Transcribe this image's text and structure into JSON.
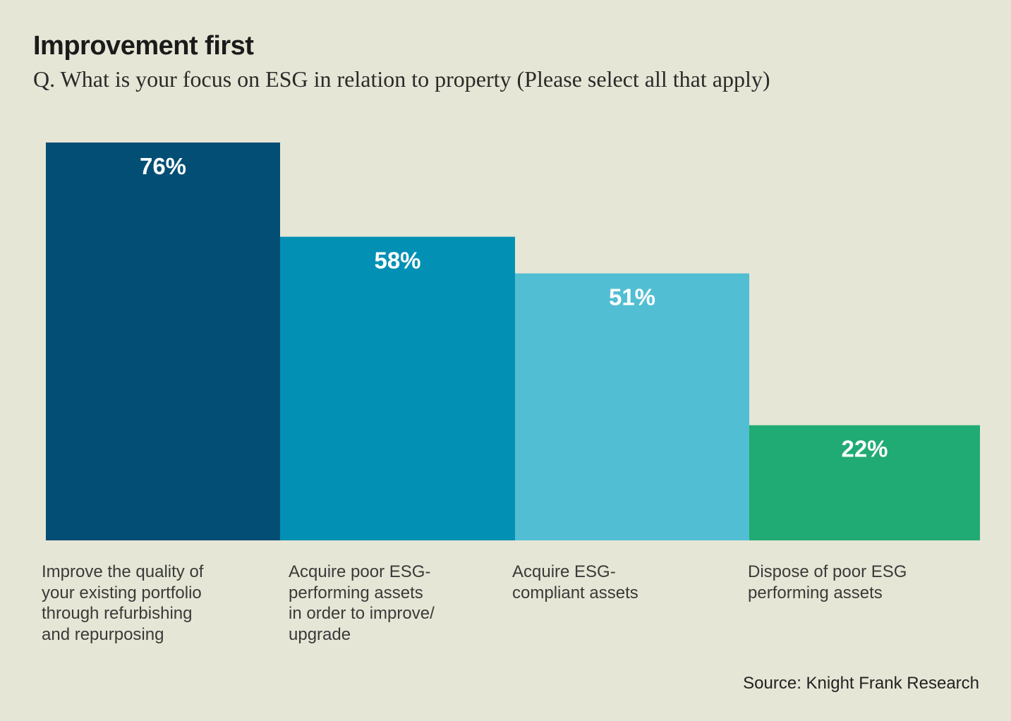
{
  "header": {
    "title": "Improvement first",
    "subtitle": "Q. What is your focus on ESG in relation to property (Please select all that apply)"
  },
  "chart_data": {
    "type": "bar",
    "title": "Improvement first",
    "subtitle": "Q. What is your focus on ESG in relation to property (Please select all that apply)",
    "categories": [
      "Improve the quality of\nyour existing portfolio\nthrough refurbishing\nand repurposing",
      "Acquire poor ESG-\nperforming assets\nin order to improve/\nupgrade",
      "Acquire ESG-\ncompliant assets",
      "Dispose of poor ESG\nperforming assets"
    ],
    "values": [
      76,
      58,
      51,
      22
    ],
    "value_labels": [
      "76%",
      "58%",
      "51%",
      "22%"
    ],
    "colors": [
      "#024e74",
      "#0291b4",
      "#52bed3",
      "#20ab74"
    ],
    "unit": "%",
    "xlabel": "",
    "ylabel": "",
    "ylim": [
      0,
      76
    ],
    "grid": false,
    "legend": "none"
  },
  "footer": {
    "source": "Source: Knight Frank Research"
  }
}
